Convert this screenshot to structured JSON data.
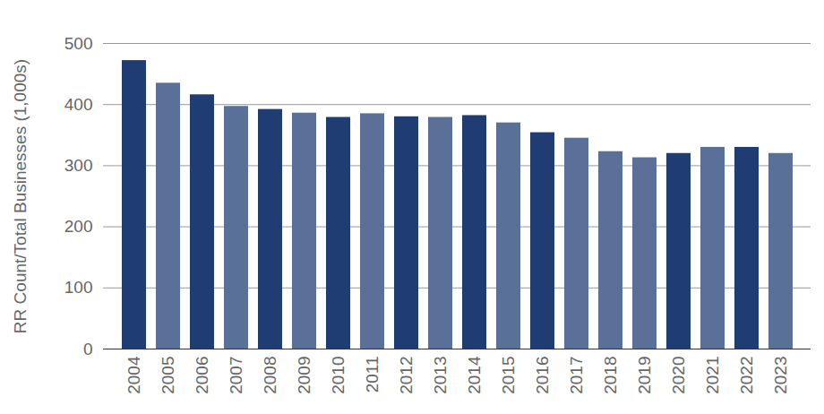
{
  "chart_data": {
    "type": "bar",
    "y_label": "RR Count/Total Businesses (1,000s)",
    "categories": [
      "2004",
      "2005",
      "2006",
      "2007",
      "2008",
      "2009",
      "2010",
      "2011",
      "2012",
      "2013",
      "2014",
      "2015",
      "2016",
      "2017",
      "2018",
      "2019",
      "2020",
      "2021",
      "2022",
      "2023"
    ],
    "values": [
      472,
      435,
      416,
      397,
      392,
      386,
      379,
      385,
      380,
      379,
      382,
      370,
      354,
      345,
      323,
      313,
      320,
      330,
      330,
      320
    ],
    "colors": [
      "#1f3d73",
      "#5a7099",
      "#1f3d73",
      "#5a7099",
      "#1f3d73",
      "#5a7099",
      "#1f3d73",
      "#5a7099",
      "#1f3d73",
      "#5a7099",
      "#1f3d73",
      "#5a7099",
      "#1f3d73",
      "#5a7099",
      "#5a7099",
      "#5a7099",
      "#1f3d73",
      "#5a7099",
      "#1f3d73",
      "#5a7099"
    ],
    "ylim": [
      0,
      500
    ],
    "yticks": [
      0,
      100,
      200,
      300,
      400,
      500
    ],
    "grid": true
  }
}
